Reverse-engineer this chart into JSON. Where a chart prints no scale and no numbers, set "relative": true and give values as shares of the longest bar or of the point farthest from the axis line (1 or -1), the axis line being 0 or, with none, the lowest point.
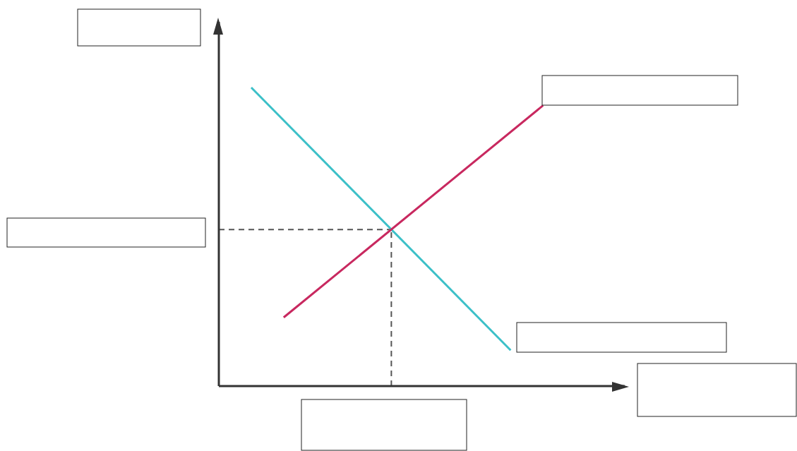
{
  "chart_data": {
    "type": "line",
    "relative": true,
    "categories": [
      null,
      null,
      null,
      null,
      null,
      null,
      null,
      null,
      null,
      null,
      null,
      null,
      null
    ],
    "series": [
      {
        "color": "#3cc0c8",
        "values": [
          null,
          1,
          null,
          null,
          null,
          null,
          null,
          null,
          null,
          0.12,
          null,
          null,
          null
        ]
      },
      {
        "color": "#c8285f",
        "values": [
          null,
          null,
          0.23,
          null,
          null,
          null,
          null,
          null,
          null,
          null,
          0.94,
          null,
          null
        ]
      }
    ],
    "ref_lines": [
      {
        "axis": "y",
        "value": 0.524,
        "color": "#555555",
        "line_style": "dashed"
      }
    ],
    "marker": "none"
  }
}
